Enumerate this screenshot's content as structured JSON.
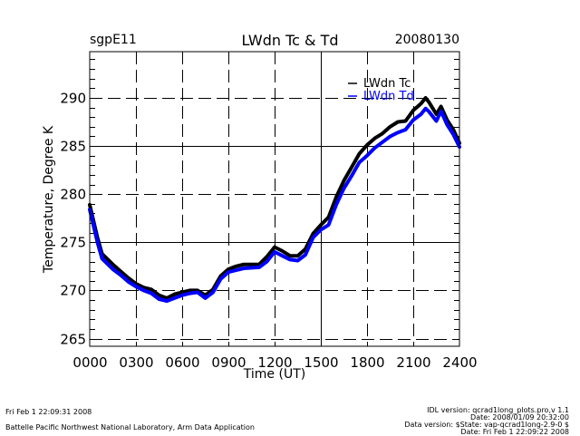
{
  "header": {
    "site": "sgpE11",
    "title": "LWdn Tc & Td",
    "date": "20080130"
  },
  "footer": {
    "left_line1": "Fri Feb  1 22:09:31 2008",
    "left_line2": "Battelle Pacific Northwest National Laboratory, Arm Data Application",
    "right_line1": "IDL version: qcrad1long_plots.pro,v 1.1",
    "right_line2": "Date: 2008/01/09 20:32:00",
    "right_line3": "Data version: $State: vap-qcrad1long-2.9-0 $",
    "right_line4": "Date: Fri Feb  1 22:09:22 2008"
  },
  "chart_data": {
    "type": "line",
    "title": "LWdn Tc & Td",
    "xlabel": "Time (UT)",
    "ylabel": "Temperature, Degree K",
    "xlim": [
      0,
      24
    ],
    "ylim": [
      264.2,
      294.8
    ],
    "x_ticks": [
      0,
      3,
      6,
      9,
      12,
      15,
      18,
      21,
      24
    ],
    "x_tick_labels": [
      "0000",
      "0300",
      "0600",
      "0900",
      "1200",
      "1500",
      "1800",
      "2100",
      "2400"
    ],
    "y_ticks": [
      265,
      270,
      275,
      280,
      285,
      290
    ],
    "y_tick_labels": [
      "265",
      "270",
      "275",
      "280",
      "285",
      "290"
    ],
    "y_minor_step": 1,
    "grid": true,
    "legend_position": "top-right",
    "series": [
      {
        "name": "LWdn Tc",
        "color": "#000000",
        "x": [
          0,
          0.5,
          0.8,
          1.5,
          2,
          2.5,
          3,
          3.5,
          4,
          4.5,
          5,
          5.5,
          6,
          6.5,
          7,
          7.5,
          8,
          8.5,
          9,
          9.5,
          10,
          11,
          11.5,
          12,
          12.5,
          13,
          13.5,
          14,
          14.5,
          15,
          15.5,
          16,
          16.5,
          17,
          17.5,
          18,
          18.5,
          19,
          19.5,
          20,
          20.5,
          21,
          21.5,
          21.8,
          22,
          22.5,
          22.8,
          23.2,
          23.6,
          24
        ],
        "values": [
          278.9,
          275.5,
          273.8,
          272.7,
          272.0,
          271.3,
          270.7,
          270.3,
          270.1,
          269.5,
          269.2,
          269.6,
          269.8,
          270.0,
          270.0,
          269.5,
          270.1,
          271.5,
          272.2,
          272.5,
          272.7,
          272.7,
          273.5,
          274.5,
          274.1,
          273.6,
          273.6,
          274.3,
          275.9,
          276.8,
          277.6,
          279.7,
          281.4,
          282.8,
          284.2,
          285.1,
          285.8,
          286.3,
          287.0,
          287.5,
          287.6,
          288.7,
          289.4,
          290.0,
          289.6,
          288.3,
          289.1,
          287.7,
          286.7,
          285.3
        ]
      },
      {
        "name": "LWdn Td",
        "color": "#0000ff",
        "x": [
          0,
          0.5,
          0.8,
          1.5,
          2,
          2.5,
          3,
          3.5,
          4,
          4.5,
          5,
          5.5,
          6,
          6.5,
          7,
          7.5,
          8,
          8.5,
          9,
          9.5,
          10,
          11,
          11.5,
          12,
          12.5,
          13,
          13.5,
          14,
          14.5,
          15,
          15.5,
          16,
          16.5,
          17,
          17.5,
          18,
          18.5,
          19,
          19.5,
          20,
          20.5,
          21,
          21.5,
          21.8,
          22,
          22.5,
          22.8,
          23.2,
          23.6,
          24
        ],
        "values": [
          278.4,
          275.0,
          273.3,
          272.2,
          271.6,
          270.9,
          270.4,
          270.0,
          269.7,
          269.1,
          268.9,
          269.2,
          269.5,
          269.7,
          269.8,
          269.2,
          269.8,
          271.2,
          271.9,
          272.1,
          272.3,
          272.4,
          273.0,
          274.0,
          273.6,
          273.2,
          273.1,
          273.7,
          275.5,
          276.3,
          276.8,
          278.9,
          280.6,
          281.9,
          283.3,
          284.0,
          284.8,
          285.4,
          286.0,
          286.4,
          286.7,
          287.7,
          288.3,
          288.9,
          288.6,
          287.6,
          288.6,
          287.2,
          286.2,
          284.9
        ]
      }
    ]
  }
}
